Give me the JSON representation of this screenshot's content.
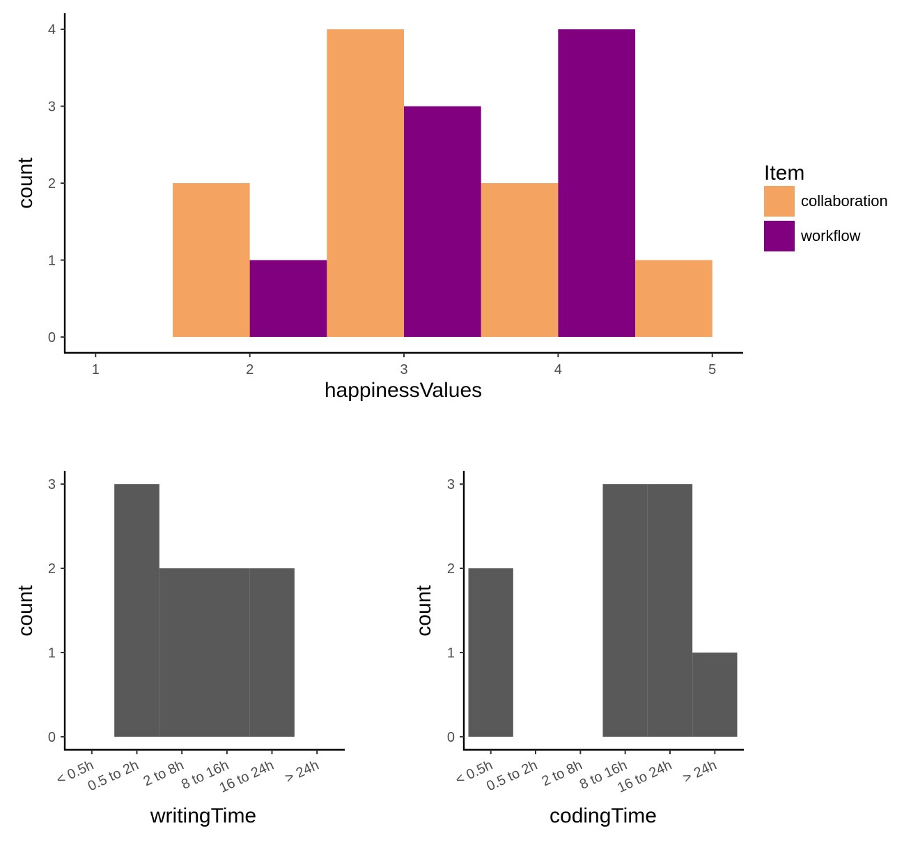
{
  "colors": {
    "collaboration": "#F4A460",
    "workflow": "#800080",
    "gray_bar": "#595959"
  },
  "legend": {
    "title": "Item",
    "items": [
      {
        "label": "collaboration",
        "color": "#F4A460"
      },
      {
        "label": "workflow",
        "color": "#800080"
      }
    ]
  },
  "chart_data": [
    {
      "type": "bar",
      "xlabel": "happinessValues",
      "ylabel": "count",
      "x_ticks": [
        "1",
        "2",
        "3",
        "4",
        "5"
      ],
      "y_ticks": [
        "0",
        "1",
        "2",
        "3",
        "4"
      ],
      "xlim": [
        0.8,
        5.2
      ],
      "ylim": [
        -0.2,
        4.2
      ],
      "legend_position": "right",
      "bin_width": 0.5,
      "series": [
        {
          "name": "collaboration",
          "bins": [
            {
              "x0": 1.5,
              "x1": 2.0,
              "count": 2
            },
            {
              "x0": 2.5,
              "x1": 3.0,
              "count": 4
            },
            {
              "x0": 3.5,
              "x1": 4.0,
              "count": 2
            },
            {
              "x0": 4.5,
              "x1": 5.0,
              "count": 1
            }
          ]
        },
        {
          "name": "workflow",
          "bins": [
            {
              "x0": 2.0,
              "x1": 2.5,
              "count": 1
            },
            {
              "x0": 3.0,
              "x1": 3.5,
              "count": 3
            },
            {
              "x0": 4.0,
              "x1": 4.5,
              "count": 4
            }
          ]
        }
      ]
    },
    {
      "type": "bar",
      "xlabel": "writingTime",
      "ylabel": "count",
      "categories": [
        "< 0.5h",
        "0.5 to 2h",
        "2 to 8h",
        "8 to 16h",
        "16 to 24h",
        "> 24h"
      ],
      "y_ticks": [
        "0",
        "1",
        "2",
        "3"
      ],
      "ylim": [
        -0.15,
        3.15
      ],
      "bins": [
        {
          "x0": 1.5,
          "x1": 2.5,
          "count": 3
        },
        {
          "x0": 2.5,
          "x1": 3.5,
          "count": 2
        },
        {
          "x0": 3.5,
          "x1": 4.5,
          "count": 2
        },
        {
          "x0": 4.5,
          "x1": 5.5,
          "count": 2
        }
      ]
    },
    {
      "type": "bar",
      "xlabel": "codingTime",
      "ylabel": "count",
      "categories": [
        "< 0.5h",
        "0.5 to 2h",
        "2 to 8h",
        "8 to 16h",
        "16 to 24h",
        "> 24h"
      ],
      "y_ticks": [
        "0",
        "1",
        "2",
        "3"
      ],
      "ylim": [
        -0.15,
        3.15
      ],
      "bins": [
        {
          "x0": 0.5,
          "x1": 1.5,
          "count": 2
        },
        {
          "x0": 3.5,
          "x1": 4.5,
          "count": 3
        },
        {
          "x0": 4.5,
          "x1": 5.5,
          "count": 3
        },
        {
          "x0": 5.5,
          "x1": 6.5,
          "count": 1
        }
      ]
    }
  ]
}
